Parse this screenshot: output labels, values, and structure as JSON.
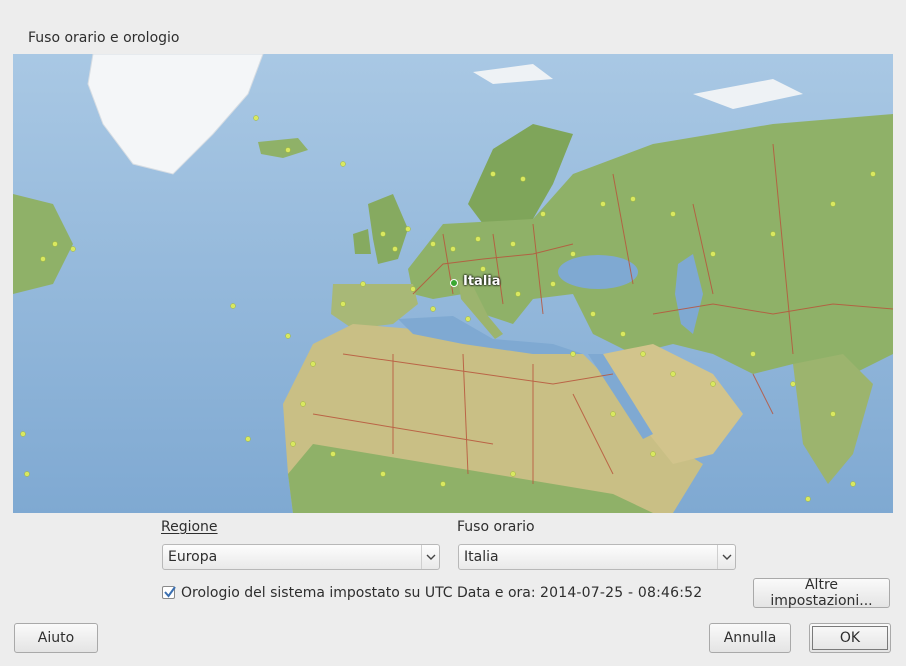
{
  "dialog": {
    "section_title": "Fuso orario e orologio"
  },
  "map": {
    "selected_location_label": "Italia"
  },
  "region": {
    "label": "Regione",
    "selected": "Europa"
  },
  "timezone": {
    "label": "Fuso orario",
    "selected": "Italia"
  },
  "utc_checkbox": {
    "label": "Orologio del sistema impostato su UTC",
    "checked": true
  },
  "datetime": {
    "label": "Data e ora:",
    "value": "2014-07-25 - 08:46:52"
  },
  "buttons": {
    "more_settings": "Altre impostazioni...",
    "help": "Aiuto",
    "cancel": "Annulla",
    "ok": "OK"
  },
  "colors": {
    "ocean": "#8fb7da",
    "land": "#8fb168",
    "desert": "#d2c48c",
    "border": "#b8553c",
    "city_dot": "#d9e860",
    "selected_dot": "#3aa832"
  }
}
